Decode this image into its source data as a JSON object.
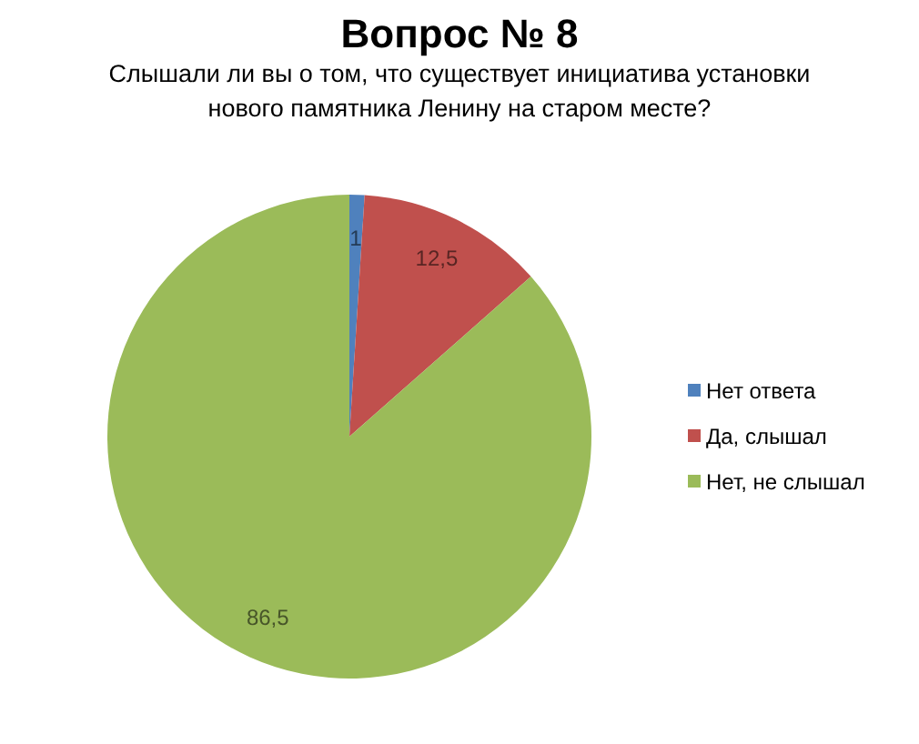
{
  "chart_data": {
    "type": "pie",
    "title": "Вопрос № 8",
    "subtitle": "Слышали ли вы о том, что существует инициатива установки нового памятника Ленину на старом месте?",
    "categories": [
      "Нет ответа",
      "Да, слышал",
      "Нет, не слышал"
    ],
    "values": [
      1,
      12.5,
      86.5
    ],
    "colors": [
      "#4f81bd",
      "#c0504d",
      "#9bbb59"
    ],
    "value_labels": [
      "1",
      "12,5",
      "86,5"
    ],
    "legend": "right"
  }
}
